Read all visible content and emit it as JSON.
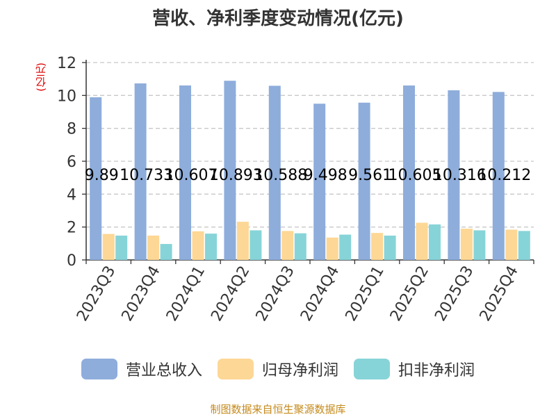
{
  "chart_data": {
    "type": "bar",
    "title": "营收、净利季度变动情况(亿元)",
    "ylabel": "(亿元)",
    "ylim": [
      0,
      12
    ],
    "yticks": [
      0,
      2,
      4,
      6,
      8,
      10,
      12
    ],
    "grid": true,
    "legend_position": "bottom",
    "categories": [
      "2023Q3",
      "2023Q4",
      "2024Q1",
      "2024Q2",
      "2024Q3",
      "2024Q4",
      "2025Q1",
      "2025Q2",
      "2025Q3",
      "2025Q4"
    ],
    "series": [
      {
        "name": "营业总收入",
        "color": "#8eaddb",
        "values": [
          9.89,
          10.733,
          10.607,
          10.893,
          10.588,
          9.498,
          9.561,
          10.605,
          10.316,
          10.212
        ]
      },
      {
        "name": "归母净利润",
        "color": "#fdd795",
        "values": [
          1.58,
          1.48,
          1.74,
          2.32,
          1.76,
          1.36,
          1.64,
          2.26,
          1.9,
          1.84
        ]
      },
      {
        "name": "扣非净利润",
        "color": "#87d4d8",
        "values": [
          1.48,
          0.97,
          1.6,
          1.8,
          1.62,
          1.54,
          1.48,
          2.16,
          1.8,
          1.76
        ]
      }
    ],
    "data_labels": [
      "9.89",
      "10.733",
      "10.607",
      "10.893",
      "10.588",
      "9.498",
      "9.561",
      "10.605",
      "10.316",
      "10.212"
    ]
  },
  "source_text": "制图数据来自恒生聚源数据库"
}
